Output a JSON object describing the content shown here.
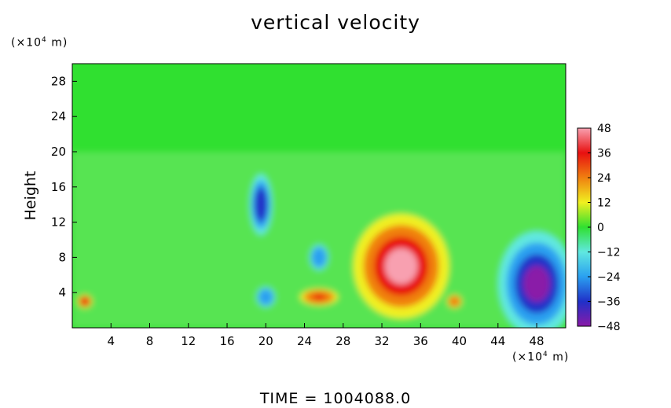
{
  "chart_data": {
    "type": "heatmap",
    "title": "vertical velocity",
    "xlabel": "",
    "ylabel": "Height",
    "x_unit": "(×10⁴ m)",
    "y_unit": "(×10⁴ m)",
    "xlim": [
      0,
      51
    ],
    "ylim": [
      0,
      30
    ],
    "x_ticks": [
      4,
      8,
      12,
      16,
      20,
      24,
      28,
      32,
      36,
      40,
      44,
      48
    ],
    "y_ticks": [
      4,
      8,
      12,
      16,
      20,
      24,
      28
    ],
    "colorbar": {
      "range": [
        -48,
        48
      ],
      "ticks": [
        48,
        36,
        24,
        12,
        0,
        -12,
        -24,
        -36,
        -48
      ],
      "tick_labels": [
        "48",
        "36",
        "24",
        "12",
        "0",
        "−12",
        "−24",
        "−36",
        "−48"
      ],
      "colors": [
        "#8a1aa8",
        "#2030c8",
        "#2aa0f0",
        "#60e8e0",
        "#30e030",
        "#f0f020",
        "#f08010",
        "#e81010",
        "#f8a0b0"
      ]
    },
    "background_value": 0,
    "features": [
      {
        "kind": "updraft",
        "x": 34,
        "y": 7,
        "rx": 5,
        "ry": 6,
        "peak": 48
      },
      {
        "kind": "downdraft",
        "x": 48,
        "y": 5,
        "rx": 4,
        "ry": 6,
        "peak": -48
      },
      {
        "kind": "downdraft",
        "x": 19.5,
        "y": 14,
        "rx": 1.2,
        "ry": 3.5,
        "peak": -36
      },
      {
        "kind": "downdraft",
        "x": 20,
        "y": 3.5,
        "rx": 1,
        "ry": 1.2,
        "peak": -30
      },
      {
        "kind": "downdraft",
        "x": 25.5,
        "y": 8,
        "rx": 1,
        "ry": 1.5,
        "peak": -30
      },
      {
        "kind": "updraft",
        "x": 1.3,
        "y": 3,
        "rx": 0.8,
        "ry": 0.8,
        "peak": 36
      },
      {
        "kind": "updraft",
        "x": 25.5,
        "y": 3.5,
        "rx": 2,
        "ry": 1,
        "peak": 30
      },
      {
        "kind": "updraft",
        "x": 39.5,
        "y": 3,
        "rx": 0.8,
        "ry": 0.8,
        "peak": 28
      }
    ]
  },
  "footer": {
    "time_label": "TIME  =  1004088.0"
  }
}
